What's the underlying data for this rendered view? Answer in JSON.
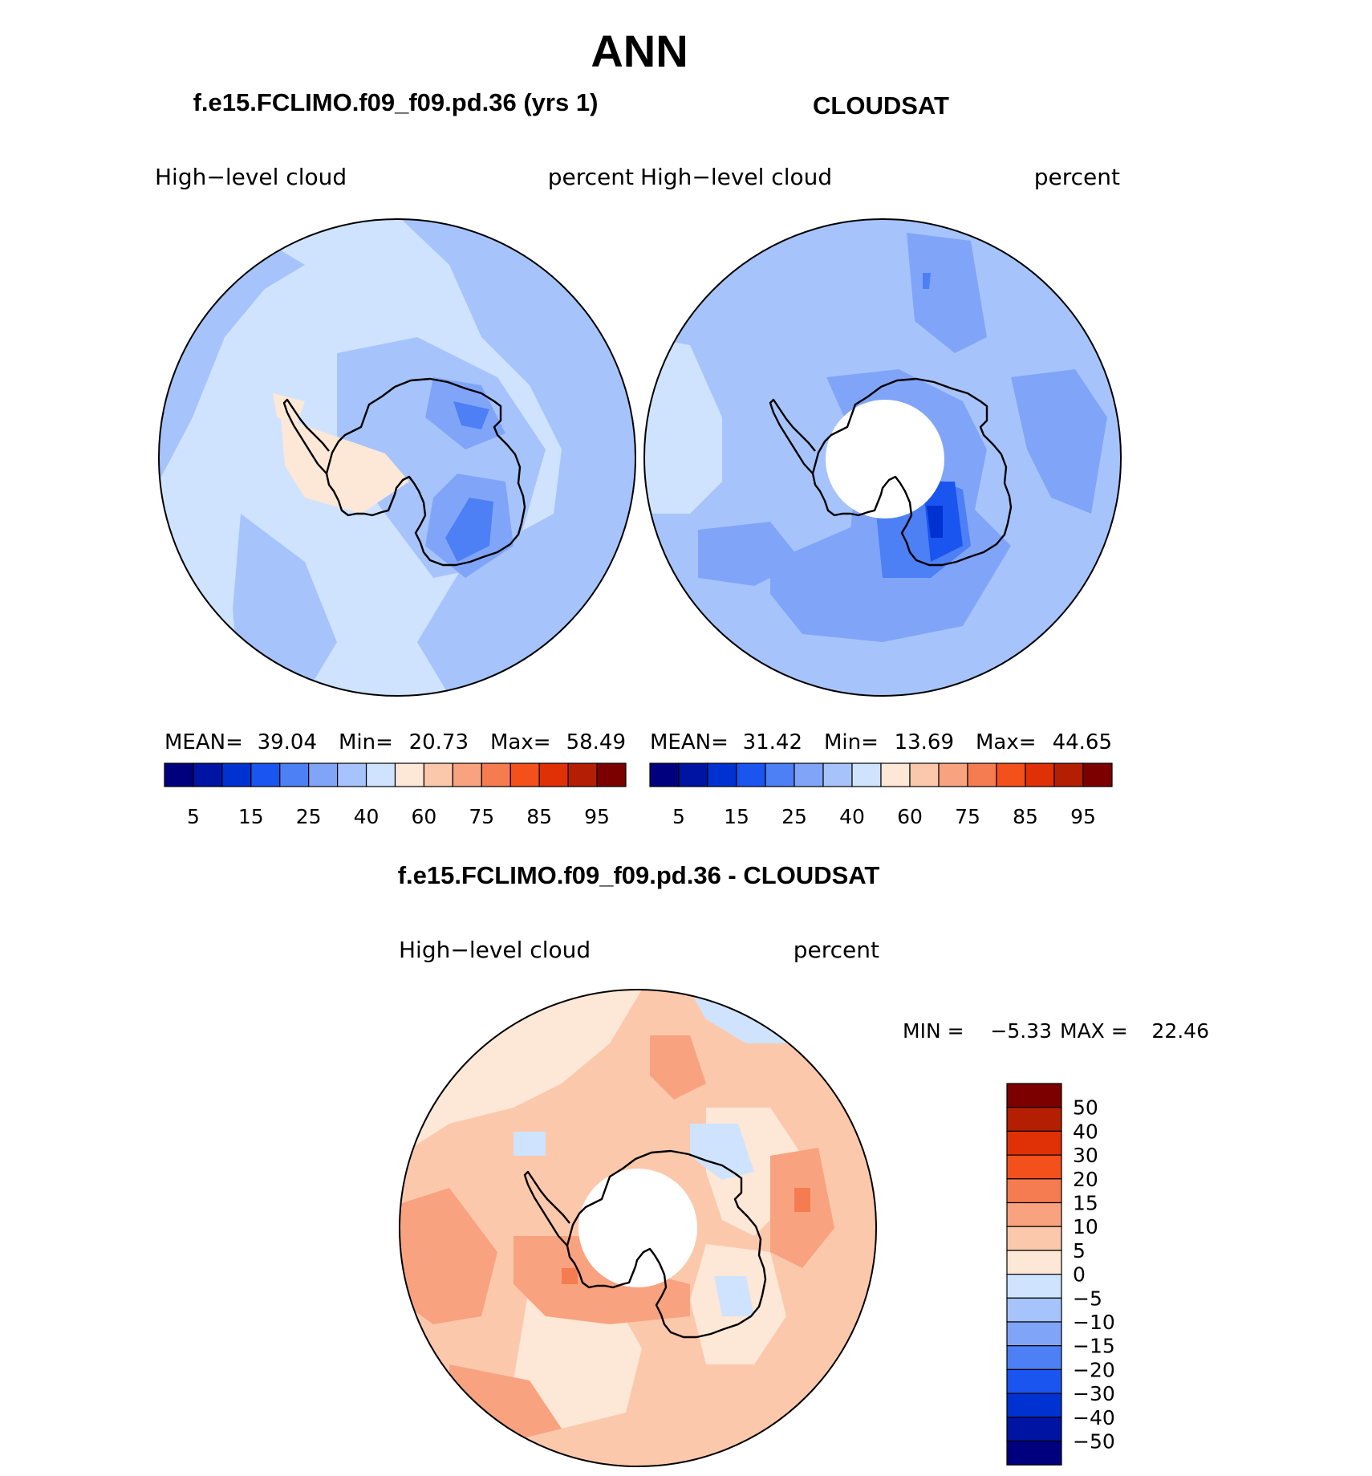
{
  "title": "ANN",
  "panels": [
    {
      "heading": "f.e15.FCLIMO.f09_f09.pd.36 (yrs 1)",
      "variable": "High−level  cloud",
      "units": "percent",
      "stats": {
        "mean_label": "MEAN=",
        "mean": "39.04",
        "min_label": "Min=",
        "min": "20.73",
        "max_label": "Max=",
        "max": "58.49"
      }
    },
    {
      "heading": "CLOUDSAT",
      "variable": "High−level  cloud",
      "units": "percent",
      "stats": {
        "mean_label": "MEAN=",
        "mean": "31.42",
        "min_label": "Min=",
        "min": "13.69",
        "max_label": "Max=",
        "max": "44.65"
      }
    }
  ],
  "field_colorbar": {
    "colors": [
      "#00007f",
      "#0014a4",
      "#0032d2",
      "#1a55f0",
      "#4d7ff5",
      "#80a5f8",
      "#a6c4fb",
      "#cfe3fe",
      "#fde7d6",
      "#fcc8ac",
      "#f9a27f",
      "#f57c50",
      "#f4501c",
      "#e03006",
      "#b41e02",
      "#7d0000"
    ],
    "labels": [
      "5",
      "15",
      "25",
      "40",
      "60",
      "75",
      "85",
      "95"
    ]
  },
  "difference": {
    "heading": "f.e15.FCLIMO.f09_f09.pd.36 - CLOUDSAT",
    "variable": "High−level  cloud",
    "units": "percent",
    "min_label": "MIN =",
    "min": "−5.33",
    "max_label": "MAX =",
    "max": "22.46"
  },
  "diff_colorbar": {
    "colors": [
      "#7d0000",
      "#b41e02",
      "#e03006",
      "#f4501c",
      "#f57c50",
      "#f9a27f",
      "#fcc8ac",
      "#fde7d6",
      "#cfe3fe",
      "#a6c4fb",
      "#80a5f8",
      "#4d7ff5",
      "#1a55f0",
      "#0032d2",
      "#0014a4",
      "#00007f"
    ],
    "labels": [
      "50",
      "40",
      "30",
      "20",
      "15",
      "10",
      "5",
      "0",
      "−5",
      "−10",
      "−15",
      "−20",
      "−30",
      "−40",
      "−50"
    ]
  }
}
